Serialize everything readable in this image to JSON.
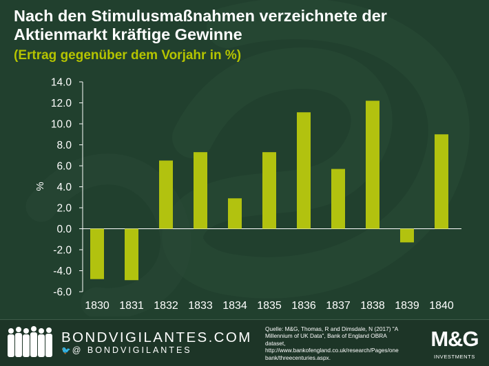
{
  "header": {
    "title_line1": "Nach den Stimulusmaßnahmen verzeichnete der",
    "title_line2": "Aktienmarkt kräftige Gewinne",
    "subtitle": "(Ertrag gegenüber dem Vorjahr in %)"
  },
  "colors": {
    "background": "#21402e",
    "bar": "#b2c20f",
    "text": "#ffffff",
    "accent": "#b5c400",
    "axis": "#ffffff"
  },
  "chart_data": {
    "type": "bar",
    "categories": [
      "1830",
      "1831",
      "1832",
      "1833",
      "1834",
      "1835",
      "1836",
      "1837",
      "1838",
      "1839",
      "1840"
    ],
    "values": [
      -4.8,
      -4.9,
      6.5,
      7.3,
      2.9,
      7.3,
      11.1,
      5.7,
      12.2,
      -1.3,
      9.0
    ],
    "ylabel": "%",
    "ylim": [
      -6.0,
      14.0
    ],
    "yticks": [
      -6.0,
      -4.0,
      -2.0,
      0.0,
      2.0,
      4.0,
      6.0,
      8.0,
      10.0,
      12.0,
      14.0
    ],
    "ytick_labels": [
      "-6.0",
      "-4.0",
      "-2.0",
      "0.0",
      "2.0",
      "4.0",
      "6.0",
      "8.0",
      "10.0",
      "12.0",
      "14.0"
    ],
    "grid": false
  },
  "footer": {
    "brand": "BONDVIGILANTES.COM",
    "twitter": "@ BONDVIGILANTES",
    "source_lines": [
      "Quelle: M&G,  Thomas, R and Dimsdale, N (2017) \"A",
      "Millennium of UK Data\", Bank of England OBRA",
      "dataset,",
      "http://www.bankofengland.co.uk/research/Pages/one",
      "bank/threecenturies.aspx."
    ],
    "logo_main": "M&G",
    "logo_sub": "INVESTMENTS"
  }
}
